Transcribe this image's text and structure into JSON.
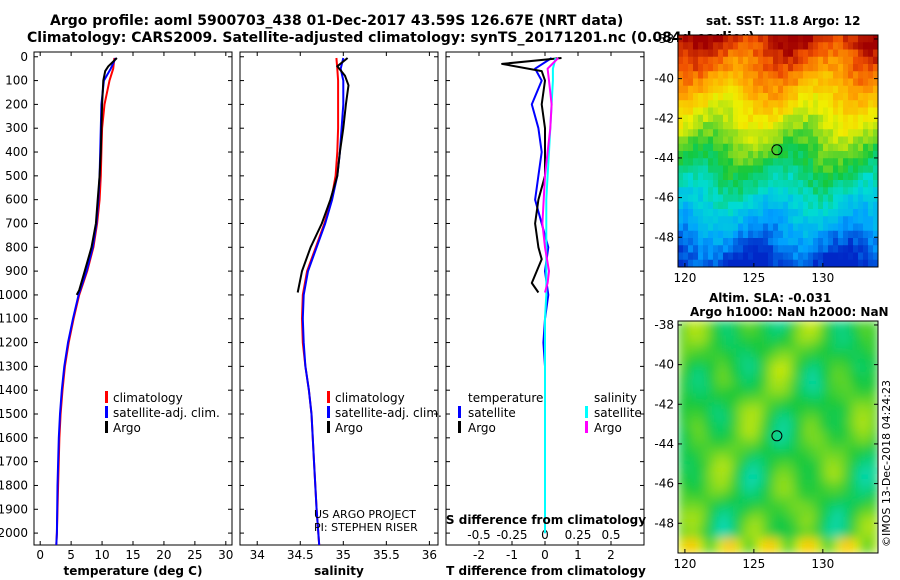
{
  "header": {
    "title_line1": "Argo profile: aoml 5900703_438 01-Dec-2017 43.59S 126.67E (NRT data)",
    "title_line2": "Climatology: CARS2009. Satellite-adjusted climatology: synTS_20171201.nc (0.084d earlier)"
  },
  "colors": {
    "climatology": "#ff0000",
    "satellite": "#0000ff",
    "argo": "#000000",
    "sal_satellite": "#00ffff",
    "sal_climatology": "#ff00ff"
  },
  "credits": {
    "line1": "US ARGO PROJECT",
    "line2": "PI: STEPHEN RISER"
  },
  "watermark": "©IMOS 13-Dec-2018 04:24:23",
  "chart_data": [
    {
      "type": "line",
      "name": "temperature-profile",
      "xlabel": "temperature (deg C)",
      "ylabel": "pressure (dbar)",
      "xlim": [
        -1,
        31
      ],
      "ylim": [
        2050,
        -20
      ],
      "x_ticks": [
        0,
        5,
        10,
        15,
        20,
        25,
        30
      ],
      "y_ticks": [
        0,
        100,
        200,
        300,
        400,
        500,
        600,
        700,
        800,
        900,
        1000,
        1100,
        1200,
        1300,
        1400,
        1500,
        1600,
        1700,
        1800,
        1900,
        2000
      ],
      "legend": {
        "position": "center-right",
        "entries": [
          "climatology",
          "satellite-adj. clim.",
          "Argo"
        ]
      },
      "series": [
        {
          "name": "climatology",
          "x": [
            12.0,
            11.8,
            11.2,
            10.4,
            10.0,
            9.9,
            9.8,
            9.6,
            9.2,
            8.6,
            7.6,
            6.3,
            5.4,
            4.6,
            4.0,
            3.6,
            3.3,
            3.1,
            2.9,
            2.7,
            2.6
          ],
          "y": [
            5,
            50,
            100,
            200,
            300,
            400,
            500,
            600,
            700,
            800,
            900,
            1000,
            1100,
            1200,
            1300,
            1400,
            1500,
            1600,
            1800,
            2000,
            2050
          ]
        },
        {
          "name": "satellite-adj. clim.",
          "x": [
            12.2,
            11.4,
            10.3,
            9.9,
            9.8,
            9.7,
            9.6,
            9.4,
            9.1,
            8.5,
            7.5,
            6.2,
            5.3,
            4.5,
            3.9,
            3.5,
            3.2,
            3.0,
            2.8,
            2.7,
            2.6
          ],
          "y": [
            5,
            50,
            100,
            200,
            300,
            400,
            500,
            600,
            700,
            800,
            900,
            1000,
            1100,
            1200,
            1300,
            1400,
            1500,
            1600,
            1800,
            2000,
            2050
          ]
        },
        {
          "name": "Argo",
          "x": [
            12.4,
            11.0,
            10.5,
            10.2,
            10.0,
            9.9,
            9.8,
            9.6,
            9.3,
            9.0,
            8.3,
            7.2,
            6.3,
            5.9
          ],
          "y": [
            5,
            40,
            60,
            100,
            200,
            300,
            400,
            500,
            600,
            700,
            800,
            900,
            980,
            1000
          ]
        }
      ]
    },
    {
      "type": "line",
      "name": "salinity-profile",
      "xlabel": "salinity",
      "xlim": [
        33.8,
        36.1
      ],
      "ylim": [
        2050,
        -20
      ],
      "x_ticks": [
        34,
        34.5,
        35,
        35.5,
        36
      ],
      "legend": {
        "position": "center-right",
        "entries": [
          "climatology",
          "satellite-adj. clim.",
          "Argo"
        ]
      },
      "series": [
        {
          "name": "climatology",
          "x": [
            34.92,
            34.93,
            34.94,
            34.94,
            34.94,
            34.93,
            34.91,
            34.86,
            34.78,
            34.68,
            34.58,
            34.53,
            34.52,
            34.53,
            34.56,
            34.6,
            34.63,
            34.66,
            34.69,
            34.72
          ],
          "y": [
            5,
            50,
            100,
            200,
            300,
            400,
            500,
            600,
            700,
            800,
            900,
            1000,
            1100,
            1200,
            1300,
            1400,
            1500,
            1700,
            1900,
            2050
          ]
        },
        {
          "name": "satellite-adj. clim.",
          "x": [
            35.0,
            34.97,
            35.0,
            35.0,
            34.98,
            34.96,
            34.93,
            34.87,
            34.79,
            34.69,
            34.59,
            34.54,
            34.53,
            34.54,
            34.56,
            34.6,
            34.63,
            34.66,
            34.69,
            34.72
          ],
          "y": [
            5,
            50,
            100,
            200,
            300,
            400,
            500,
            600,
            700,
            800,
            900,
            1000,
            1100,
            1200,
            1300,
            1400,
            1500,
            1700,
            1900,
            2050
          ]
        },
        {
          "name": "Argo",
          "x": [
            35.05,
            34.93,
            35.02,
            35.06,
            35.03,
            35.0,
            34.96,
            34.93,
            34.85,
            34.75,
            34.62,
            34.52,
            34.47
          ],
          "y": [
            5,
            40,
            80,
            120,
            200,
            300,
            400,
            500,
            600,
            700,
            800,
            900,
            990
          ]
        }
      ]
    },
    {
      "type": "line",
      "name": "difference-profile",
      "xlabel": "T difference from climatology",
      "x2label": "S difference from climatology",
      "xlim": [
        -3,
        3
      ],
      "x2lim": [
        -0.75,
        0.75
      ],
      "ylim": [
        2050,
        -20
      ],
      "x_ticks": [
        -2,
        -1,
        0,
        1,
        2
      ],
      "x2_ticks": [
        -0.5,
        -0.25,
        0,
        0.25,
        0.5
      ],
      "x2_tick_labels": [
        "-0.5",
        "-0.25",
        "0",
        "0.25",
        "0.5"
      ],
      "legend": {
        "position": "center",
        "temperature_heading": "temperature",
        "salinity_heading": "salinity",
        "entries": [
          "satellite",
          "Argo",
          "satellite",
          "Argo"
        ]
      },
      "series": [
        {
          "name": "temperature satellite",
          "axis": "T",
          "x": [
            0.2,
            -0.3,
            -0.1,
            -0.4,
            -0.2,
            -0.1,
            -0.2,
            -0.3,
            -0.1,
            0.1,
            0.0,
            0.1,
            0.0,
            -0.05,
            0.0,
            0.0,
            0.0
          ],
          "y": [
            5,
            50,
            100,
            200,
            300,
            400,
            500,
            600,
            700,
            800,
            900,
            1000,
            1100,
            1200,
            1300,
            1500,
            2000
          ]
        },
        {
          "name": "temperature Argo",
          "axis": "T",
          "x": [
            0.5,
            -1.3,
            -0.1,
            0.0,
            -0.1,
            0.0,
            0.0,
            0.0,
            -0.2,
            -0.3,
            -0.2,
            -0.1,
            -0.4,
            -0.2
          ],
          "y": [
            5,
            30,
            60,
            100,
            200,
            300,
            400,
            500,
            600,
            700,
            800,
            850,
            950,
            990
          ]
        },
        {
          "name": "salinity satellite",
          "axis": "S",
          "x": [
            0.08,
            0.06,
            0.06,
            0.05,
            0.04,
            0.03,
            0.02,
            0.01,
            0.01,
            0.01,
            0.01,
            0.01,
            0.0,
            0.0,
            0.0,
            0.0,
            0.0
          ],
          "y": [
            5,
            50,
            100,
            200,
            300,
            400,
            500,
            600,
            700,
            800,
            900,
            1000,
            1100,
            1300,
            1500,
            1800,
            2000
          ]
        },
        {
          "name": "salinity Argo",
          "axis": "S",
          "x": [
            0.1,
            0.02,
            0.03,
            0.05,
            0.04,
            0.02,
            0.0,
            -0.01,
            -0.02,
            0.0,
            0.03,
            0.02,
            0.0
          ],
          "y": [
            5,
            50,
            100,
            200,
            300,
            400,
            500,
            600,
            700,
            800,
            900,
            950,
            990
          ]
        }
      ]
    },
    {
      "type": "heatmap",
      "name": "sst-map",
      "title": "sat. SST: 11.8 Argo: 12",
      "xlim": [
        119.5,
        134
      ],
      "ylim": [
        -49.5,
        -37.8
      ],
      "x_ticks": [
        120,
        125,
        130
      ],
      "y_ticks": [
        -38,
        -40,
        -42,
        -44,
        -46,
        -48
      ],
      "marker": {
        "lon": 126.67,
        "lat": -43.59
      }
    },
    {
      "type": "heatmap",
      "name": "sla-map",
      "title_line1": "Altim. SLA: -0.031",
      "title_line2": "Argo h1000: NaN h2000: NaN",
      "xlim": [
        119.5,
        134
      ],
      "ylim": [
        -49.5,
        -37.8
      ],
      "x_ticks": [
        120,
        125,
        130
      ],
      "y_ticks": [
        -38,
        -40,
        -42,
        -44,
        -46,
        -48
      ],
      "marker": {
        "lon": 126.67,
        "lat": -43.59
      }
    }
  ]
}
